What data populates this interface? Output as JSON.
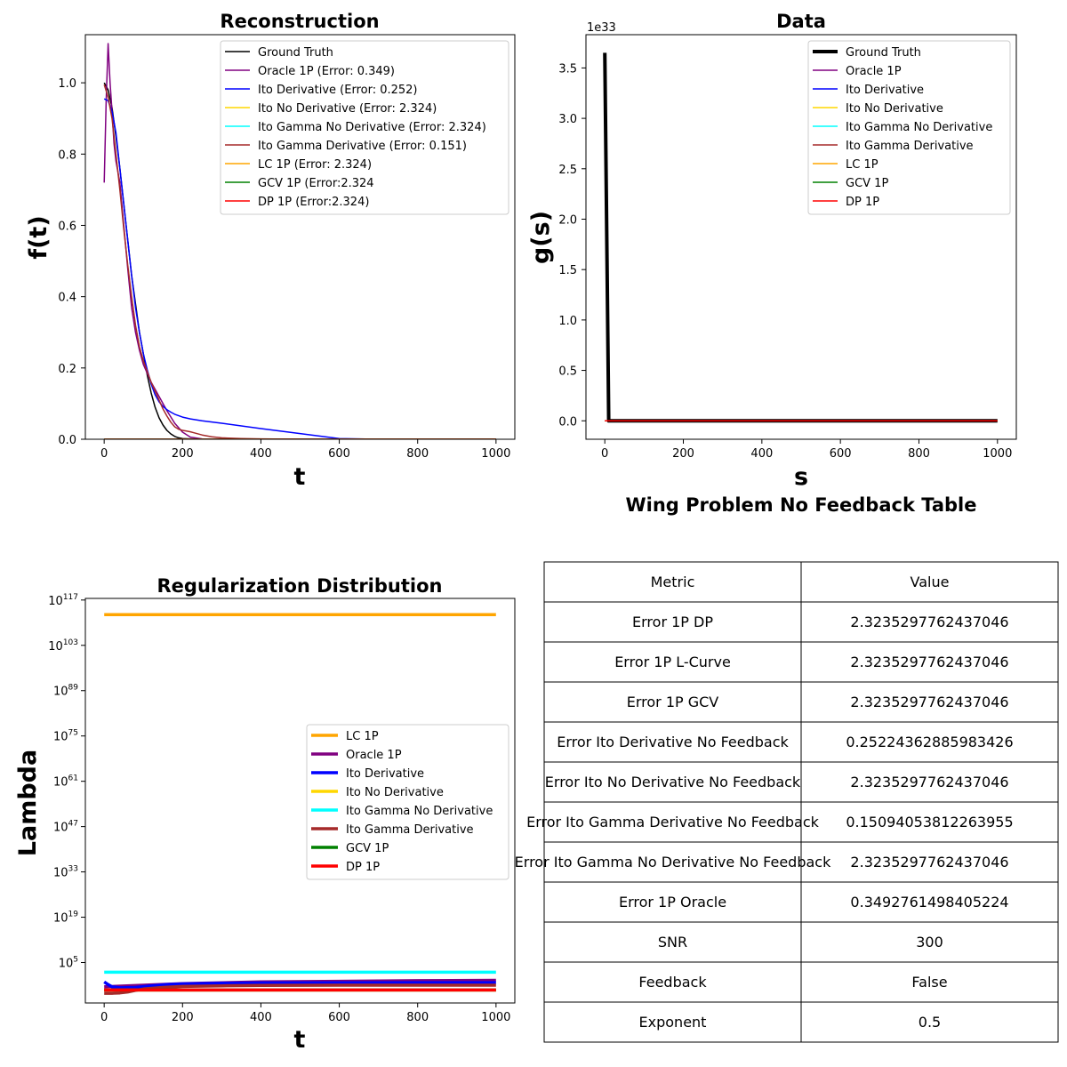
{
  "chart_data": [
    {
      "type": "line",
      "title": "Reconstruction",
      "xlabel": "t",
      "ylabel": "f(t)",
      "xlim": [
        -48,
        1048
      ],
      "ylim": [
        0,
        1.135
      ],
      "xticks": [
        "0",
        "200",
        "400",
        "600",
        "800",
        "1000"
      ],
      "yticks": [
        "0.0",
        "0.2",
        "0.4",
        "0.6",
        "0.8",
        "1.0"
      ],
      "legend_position": "upper right",
      "series": [
        {
          "name": "Ground Truth",
          "color": "#000000",
          "x": [
            0,
            10,
            20,
            30,
            40,
            50,
            60,
            70,
            80,
            90,
            100,
            110,
            120,
            130,
            140,
            150,
            160,
            170,
            180,
            190,
            200,
            220,
            250,
            300,
            400,
            600,
            800,
            1000
          ],
          "y": [
            1.0,
            0.98,
            0.93,
            0.85,
            0.76,
            0.66,
            0.56,
            0.46,
            0.38,
            0.3,
            0.24,
            0.18,
            0.13,
            0.09,
            0.06,
            0.04,
            0.025,
            0.015,
            0.008,
            0.004,
            0.002,
            0.001,
            0,
            0,
            0,
            0,
            0,
            0
          ]
        },
        {
          "name": "Oracle 1P (Error: 0.349)",
          "color": "#800080",
          "x": [
            0,
            5,
            10,
            15,
            20,
            25,
            30,
            40,
            50,
            60,
            70,
            80,
            90,
            100,
            120,
            140,
            160,
            180,
            200,
            220,
            250,
            300,
            400,
            600,
            800,
            1000
          ],
          "y": [
            0.72,
            0.95,
            1.11,
            1.0,
            0.92,
            0.83,
            0.78,
            0.72,
            0.6,
            0.48,
            0.37,
            0.3,
            0.25,
            0.21,
            0.16,
            0.12,
            0.08,
            0.045,
            0.02,
            0.006,
            0.001,
            0,
            0,
            0,
            0,
            0
          ]
        },
        {
          "name": "Ito Derivative (Error: 0.252)",
          "color": "#0000ff",
          "x": [
            0,
            10,
            20,
            30,
            40,
            50,
            60,
            70,
            80,
            90,
            100,
            110,
            120,
            130,
            140,
            150,
            160,
            170,
            180,
            200,
            220,
            250,
            300,
            400,
            500,
            600,
            700,
            800,
            1000
          ],
          "y": [
            0.955,
            0.95,
            0.92,
            0.86,
            0.76,
            0.66,
            0.56,
            0.46,
            0.37,
            0.3,
            0.24,
            0.195,
            0.155,
            0.125,
            0.105,
            0.092,
            0.083,
            0.076,
            0.07,
            0.062,
            0.057,
            0.052,
            0.045,
            0.03,
            0.016,
            0.002,
            0,
            0,
            0
          ]
        },
        {
          "name": "Ito No Derivative (Error: 2.324)",
          "color": "#ffd700",
          "x": [
            0,
            1000
          ],
          "y": [
            0,
            0
          ]
        },
        {
          "name": "Ito Gamma No Derivative (Error: 2.324)",
          "color": "#00ffff",
          "x": [
            0,
            1000
          ],
          "y": [
            0,
            0
          ]
        },
        {
          "name": "Ito Gamma Derivative (Error: 0.151)",
          "color": "#a52a2a",
          "x": [
            0,
            10,
            20,
            30,
            40,
            50,
            60,
            70,
            80,
            90,
            100,
            110,
            120,
            130,
            140,
            150,
            160,
            170,
            180,
            190,
            200,
            210,
            220,
            230,
            250,
            275,
            300,
            350,
            400,
            500,
            600,
            700,
            800,
            900,
            1000
          ],
          "y": [
            0.995,
            0.96,
            0.9,
            0.8,
            0.7,
            0.59,
            0.49,
            0.4,
            0.32,
            0.26,
            0.22,
            0.19,
            0.16,
            0.135,
            0.11,
            0.085,
            0.065,
            0.048,
            0.035,
            0.028,
            0.025,
            0.023,
            0.021,
            0.018,
            0.012,
            0.007,
            0.004,
            0.002,
            0.001,
            0,
            0,
            0,
            0,
            0,
            0
          ]
        },
        {
          "name": "LC 1P (Error: 2.324)",
          "color": "#ffa500",
          "x": [
            0,
            1000
          ],
          "y": [
            0,
            0
          ]
        },
        {
          "name": "GCV 1P (Error:2.324",
          "color": "#008000",
          "x": [
            0,
            1000
          ],
          "y": [
            0,
            0
          ]
        },
        {
          "name": "DP 1P (Error:2.324)",
          "color": "#ff0000",
          "x": [
            0,
            1000
          ],
          "y": [
            0,
            0
          ]
        }
      ]
    },
    {
      "type": "line",
      "title": "Data",
      "xlabel": "s",
      "ylabel": "g(s)",
      "offset_label": "1e33",
      "xlim": [
        -48,
        1048
      ],
      "ylim": [
        -0.183,
        3.83
      ],
      "xticks": [
        "0",
        "200",
        "400",
        "600",
        "800",
        "1000"
      ],
      "yticks": [
        "0.0",
        "0.5",
        "1.0",
        "1.5",
        "2.0",
        "2.5",
        "3.0",
        "3.5"
      ],
      "legend_position": "upper right",
      "series": [
        {
          "name": "Ground Truth",
          "color": "#000000",
          "width": 4,
          "x": [
            0,
            10,
            20,
            1000
          ],
          "y": [
            3.65,
            0.0,
            0.0,
            0.0
          ]
        },
        {
          "name": "Oracle 1P",
          "color": "#800080",
          "x": [
            0,
            1000
          ],
          "y": [
            0,
            0
          ]
        },
        {
          "name": "Ito Derivative",
          "color": "#0000ff",
          "x": [
            0,
            1000
          ],
          "y": [
            0,
            0
          ]
        },
        {
          "name": "Ito No Derivative",
          "color": "#ffd700",
          "x": [
            0,
            1000
          ],
          "y": [
            0,
            0
          ]
        },
        {
          "name": "Ito Gamma No Derivative",
          "color": "#00ffff",
          "x": [
            0,
            1000
          ],
          "y": [
            0,
            0
          ]
        },
        {
          "name": "Ito Gamma Derivative",
          "color": "#a52a2a",
          "x": [
            0,
            1000
          ],
          "y": [
            0,
            0
          ]
        },
        {
          "name": "LC 1P",
          "color": "#ffa500",
          "x": [
            0,
            1000
          ],
          "y": [
            0,
            0
          ]
        },
        {
          "name": "GCV 1P",
          "color": "#008000",
          "x": [
            0,
            1000
          ],
          "y": [
            0,
            0
          ]
        },
        {
          "name": "DP 1P",
          "color": "#ff0000",
          "x": [
            0,
            1000
          ],
          "y": [
            0,
            0
          ]
        }
      ]
    },
    {
      "type": "line",
      "title": "Regularization Distribution",
      "xlabel": "t",
      "ylabel": "Lambda",
      "yscale": "log",
      "xlim": [
        -48,
        1048
      ],
      "ylim_log10": [
        -7.5,
        117.5
      ],
      "xticks": [
        "0",
        "200",
        "400",
        "600",
        "800",
        "1000"
      ],
      "yticks": [
        {
          "base": "10",
          "exp": "5",
          "value": 5
        },
        {
          "base": "10",
          "exp": "19",
          "value": 19
        },
        {
          "base": "10",
          "exp": "33",
          "value": 33
        },
        {
          "base": "10",
          "exp": "47",
          "value": 47
        },
        {
          "base": "10",
          "exp": "61",
          "value": 61
        },
        {
          "base": "10",
          "exp": "75",
          "value": 75
        },
        {
          "base": "10",
          "exp": "89",
          "value": 89
        },
        {
          "base": "10",
          "exp": "103",
          "value": 103
        },
        {
          "base": "10",
          "exp": "117",
          "value": 117
        }
      ],
      "legend_position": "center right",
      "series": [
        {
          "name": "LC 1P",
          "color": "#ffa500",
          "x": [
            0,
            1000
          ],
          "log10_y": [
            112.5,
            112.5
          ]
        },
        {
          "name": "Oracle 1P",
          "color": "#800080",
          "x": [
            0,
            100,
            200,
            400,
            600,
            800,
            1000
          ],
          "log10_y": [
            -2.5,
            -2.0,
            -1.5,
            -1.0,
            -0.8,
            -0.6,
            -0.5
          ]
        },
        {
          "name": "Ito Derivative",
          "color": "#0000ff",
          "x": [
            0,
            10,
            20,
            40,
            80,
            120,
            160,
            200,
            300,
            400,
            600,
            800,
            1000
          ],
          "log10_y": [
            -1.0,
            -1.8,
            -2.5,
            -2.8,
            -2.7,
            -2.2,
            -1.8,
            -1.6,
            -1.4,
            -1.3,
            -1.25,
            -1.2,
            -1.2
          ]
        },
        {
          "name": "Ito No Derivative",
          "color": "#ffd700",
          "x": [
            0,
            1000
          ],
          "log10_y": [
            -3.5,
            -3.5
          ]
        },
        {
          "name": "Ito Gamma No Derivative",
          "color": "#00ffff",
          "x": [
            0,
            1000
          ],
          "log10_y": [
            2.0,
            2.0
          ]
        },
        {
          "name": "Ito Gamma Derivative",
          "color": "#a52a2a",
          "x": [
            0,
            20,
            40,
            60,
            80,
            100,
            150,
            200,
            300,
            400,
            600,
            800,
            1000
          ],
          "log10_y": [
            -4.5,
            -4.5,
            -4.4,
            -4.1,
            -3.6,
            -3.2,
            -2.7,
            -2.4,
            -2.2,
            -2.1,
            -2.0,
            -2.0,
            -2.0
          ]
        },
        {
          "name": "GCV 1P",
          "color": "#008000",
          "x": [
            0,
            1000
          ],
          "log10_y": [
            -3.5,
            -3.5
          ]
        },
        {
          "name": "DP 1P",
          "color": "#ff0000",
          "x": [
            0,
            1000
          ],
          "log10_y": [
            -3.5,
            -3.5
          ]
        }
      ]
    },
    {
      "type": "table",
      "title": "Wing Problem No Feedback Table",
      "columns": [
        "Metric",
        "Value"
      ],
      "rows": [
        [
          "Error 1P DP",
          "2.3235297762437046"
        ],
        [
          "Error 1P L-Curve",
          "2.3235297762437046"
        ],
        [
          "Error 1P GCV",
          "2.3235297762437046"
        ],
        [
          "Error Ito Derivative No Feedback",
          "0.25224362885983426"
        ],
        [
          "Error Ito No Derivative No Feedback",
          "2.3235297762437046"
        ],
        [
          "Error Ito Gamma Derivative No Feedback",
          "0.15094053812263955"
        ],
        [
          "Error Ito Gamma No Derivative No Feedback",
          "2.3235297762437046"
        ],
        [
          "Error 1P Oracle",
          "0.3492761498405224"
        ],
        [
          "SNR",
          "300"
        ],
        [
          "Feedback",
          "False"
        ],
        [
          "Exponent",
          "0.5"
        ]
      ]
    }
  ]
}
